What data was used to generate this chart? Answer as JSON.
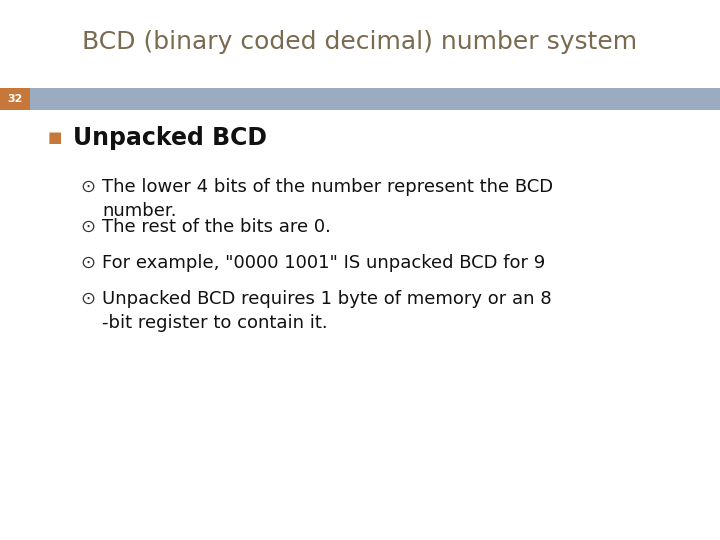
{
  "title": "BCD (binary coded decimal) number system",
  "title_color": "#7A6A50",
  "title_fontsize": 18,
  "slide_number": "32",
  "slide_number_bg": "#C8773A",
  "header_bar_color": "#9BACC0",
  "bg_color": "#FFFFFF",
  "heading": "Unpacked BCD",
  "heading_fontsize": 17,
  "bullet_symbol": "⊙",
  "bullet_color": "#333333",
  "bullets": [
    "The lower 4 bits of the number represent the BCD\nnumber.",
    "The rest of the bits are 0.",
    "For example, \"0000 1001\" IS unpacked BCD for 9",
    "Unpacked BCD requires 1 byte of memory or an 8\n-bit register to contain it."
  ],
  "bullet_fontsize": 13,
  "square_bullet_color": "#C8773A",
  "text_color": "#111111"
}
